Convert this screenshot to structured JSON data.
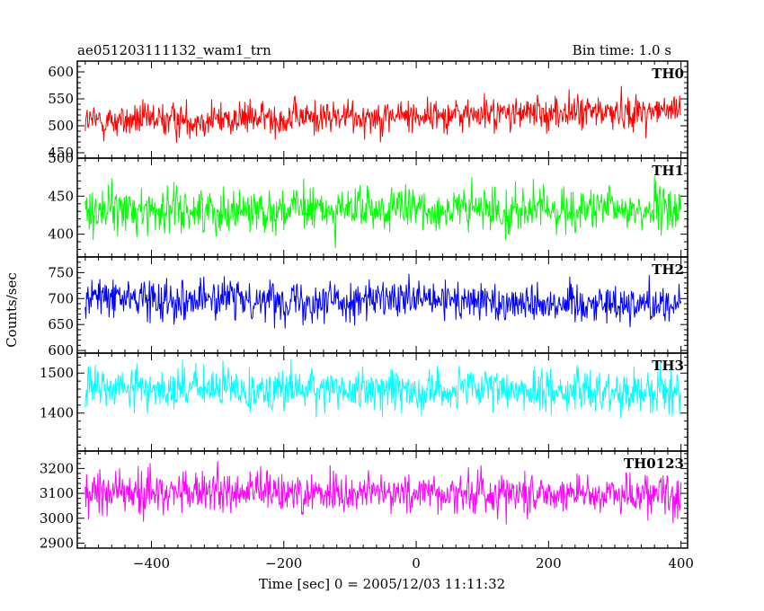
{
  "header": {
    "title": "ae051203111132_wam1_trn",
    "bin_time": "Bin time: 1.0 s"
  },
  "chart_data": {
    "type": "line",
    "xlabel": "Time [sec] 0 = 2005/12/03 11:11:32",
    "ylabel": "Counts/sec",
    "xlim": [
      -512,
      410
    ],
    "x_ticks": [
      -400,
      -200,
      0,
      200,
      400
    ],
    "x_tick_labels": [
      "−400",
      "−200",
      "0",
      "200",
      "400"
    ],
    "x_range_data": [
      -500,
      400
    ],
    "bin_time_s": 1.0,
    "panels": [
      {
        "name": "TH0",
        "color": "#ff0000",
        "ylim": [
          440,
          620
        ],
        "y_ticks": [
          450,
          500,
          550,
          600
        ],
        "y_tick_labels": [
          "450",
          "500",
          "550",
          "600"
        ],
        "mean_start": 508,
        "mean_end": 528,
        "noise_sd": 23
      },
      {
        "name": "TH1",
        "color": "#00ff00",
        "ylim": [
          370,
          500
        ],
        "y_ticks": [
          400,
          450,
          500
        ],
        "y_tick_labels": [
          "400",
          "450",
          "500"
        ],
        "mean_start": 432,
        "mean_end": 432,
        "noise_sd": 21
      },
      {
        "name": "TH2",
        "color": "#0000ff",
        "ylim": [
          595,
          780
        ],
        "y_ticks": [
          600,
          650,
          700,
          750
        ],
        "y_tick_labels": [
          "600",
          "650",
          "700",
          "750"
        ],
        "mean_start": 702,
        "mean_end": 690,
        "noise_sd": 27
      },
      {
        "name": "TH3",
        "color": "#00ffff",
        "ylim": [
          1305,
          1550
        ],
        "y_ticks": [
          1400,
          1500
        ],
        "y_tick_labels": [
          "1400",
          "1500"
        ],
        "mean_start": 1462,
        "mean_end": 1455,
        "noise_sd": 38
      },
      {
        "name": "TH0123",
        "color": "#ff00ff",
        "ylim": [
          2880,
          3270
        ],
        "y_ticks": [
          2900,
          3000,
          3100,
          3200
        ],
        "y_tick_labels": [
          "2900",
          "3000",
          "3100",
          "3200"
        ],
        "mean_start": 3105,
        "mean_end": 3100,
        "noise_sd": 60
      }
    ]
  }
}
